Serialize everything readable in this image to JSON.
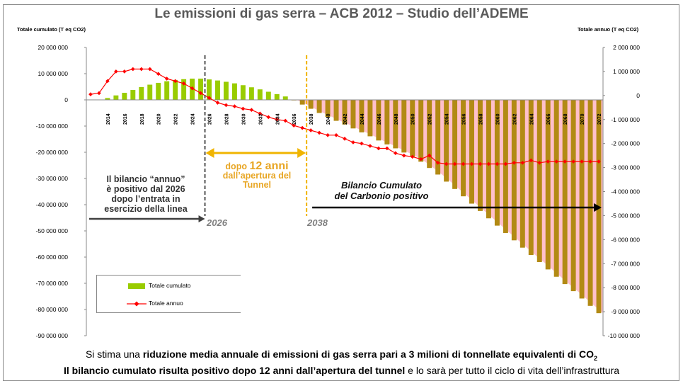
{
  "slide": {
    "title": "Le emissioni di gas serra – ACB 2012 – Studio dell’ADEME",
    "footer_line1_pre": "Si stima una ",
    "footer_line1_bold": "riduzione media annuale di emissioni di gas serra pari a 3 milioni di tonnellate equivalenti di CO",
    "footer_line1_sub": "2",
    "footer_line2_bold": "Il bilancio cumulato risulta positivo dopo 12 anni dall’apertura del tunnel",
    "footer_line2_post": " e lo sarà per tutto il ciclo di vita dell’infrastruttura"
  },
  "chart_data": {
    "type": "bar",
    "xlabel": "",
    "ylabel": "Totale cumulato (T eq CO2)",
    "ylabel_right": "Totale annuo (T eq CO2)",
    "ylim": [
      -90000000,
      20000000
    ],
    "ylim_right": [
      -10000000,
      2000000
    ],
    "yticks_left": [
      "20 000 000",
      "10 000 000",
      "0",
      "-10 000 000",
      "-20 000 000",
      "-30 000 000",
      "-40 000 000",
      "-50 000 000",
      "-60 000 000",
      "-70 000 000",
      "-80 000 000",
      "-90 000 000"
    ],
    "yticks_right": [
      "2 000 000",
      "1 000 000",
      "0",
      "-1 000 000",
      "-2 000 000",
      "-3 000 000",
      "-4 000 000",
      "-5 000 000",
      "-6 000 000",
      "-7 000 000",
      "-8 000 000",
      "-9 000 000",
      "-10 000 000"
    ],
    "x_start": 2012,
    "x_tick_labels": [
      "2014",
      "2016",
      "2018",
      "2020",
      "2022",
      "2024",
      "2026",
      "2028",
      "2030",
      "2032",
      "2034",
      "2036",
      "2038",
      "2040",
      "2042",
      "2044",
      "2046",
      "2048",
      "2050",
      "2052",
      "2054",
      "2056",
      "2058",
      "2060",
      "2062",
      "2064",
      "2066",
      "2068",
      "2070",
      "2072"
    ],
    "series": [
      {
        "name": "Totale cumulato",
        "axis": "left",
        "color": "#99cc00",
        "color_negative": "#b28a14",
        "values": [
          0,
          100000,
          700000,
          1700000,
          2700000,
          3800000,
          4900000,
          5800000,
          6500000,
          7100000,
          7600000,
          7900000,
          8100000,
          8100000,
          7800000,
          7400000,
          6900000,
          6300000,
          5600000,
          4800000,
          4000000,
          3100000,
          2200000,
          1300000,
          -200000,
          -1800000,
          -3400000,
          -5000000,
          -6500000,
          -8000000,
          -9400000,
          -10900000,
          -12400000,
          -13900000,
          -15500000,
          -17000000,
          -18500000,
          -20100000,
          -21700000,
          -23600000,
          -26000000,
          -28500000,
          -31200000,
          -34000000,
          -36800000,
          -39600000,
          -42400000,
          -45200000,
          -48000000,
          -50800000,
          -53600000,
          -56400000,
          -59200000,
          -61900000,
          -64700000,
          -67500000,
          -70300000,
          -73000000,
          -75800000,
          -78600000,
          -81400000
        ]
      },
      {
        "name": "Totale annuo",
        "axis": "right",
        "color": "#ff0000",
        "values": [
          50000,
          100000,
          600000,
          1000000,
          1000000,
          1100000,
          1100000,
          1100000,
          900000,
          700000,
          600000,
          500000,
          300000,
          100000,
          -100000,
          -300000,
          -400000,
          -450000,
          -550000,
          -600000,
          -750000,
          -900000,
          -1000000,
          -1050000,
          -1250000,
          -1350000,
          -1450000,
          -1550000,
          -1650000,
          -1650000,
          -1800000,
          -1950000,
          -2000000,
          -2100000,
          -2200000,
          -2200000,
          -2400000,
          -2500000,
          -2550000,
          -2650000,
          -2500000,
          -2800000,
          -2850000,
          -2850000,
          -2850000,
          -2850000,
          -2850000,
          -2850000,
          -2850000,
          -2850000,
          -2800000,
          -2800000,
          -2700000,
          -2800000,
          -2750000,
          -2750000,
          -2750000,
          -2750000,
          -2750000,
          -2750000,
          -2750000
        ]
      }
    ],
    "markers": [
      {
        "year": 2026,
        "label": "2026",
        "color": "#555555"
      },
      {
        "year": 2038,
        "label": "2038",
        "color": "#f0b400"
      }
    ],
    "annotations": {
      "left": [
        "Il bilancio “annuo”",
        "è positivo dal 2026",
        "dopo l’entrata in",
        "esercizio della linea"
      ],
      "middle_pre": "dopo ",
      "middle_big": "12 anni",
      "middle_lines": [
        "dall’apertura del",
        "Tunnel"
      ],
      "right": [
        "Bilancio Cumulato",
        "del Carbonio positivo"
      ]
    },
    "legend": {
      "position": "bottom-left",
      "items": [
        {
          "label": "Totale cumulato",
          "color": "#99cc00"
        },
        {
          "label": "Totale annuo",
          "color": "#ff0000"
        }
      ]
    },
    "grid": false
  }
}
